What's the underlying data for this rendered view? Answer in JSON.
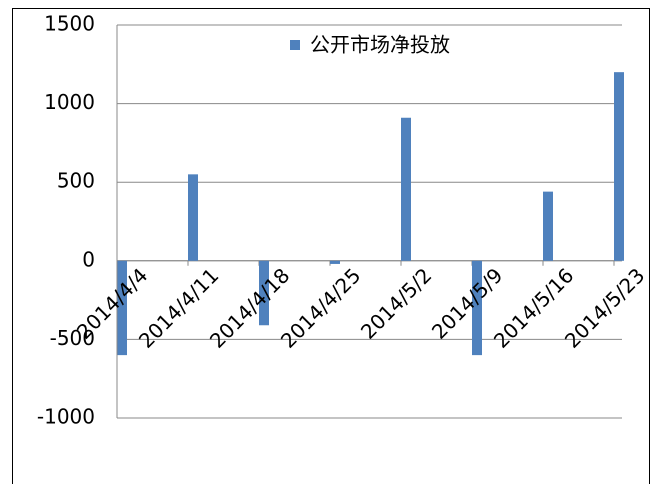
{
  "chart_data": {
    "type": "bar",
    "categories": [
      "2014/4/4",
      "2014/4/11",
      "2014/4/18",
      "2014/4/25",
      "2014/5/2",
      "2014/5/9",
      "2014/5/16",
      "2014/5/23"
    ],
    "series": [
      {
        "name": "公开市场净投放",
        "color": "#4f81bd",
        "values": [
          -600,
          550,
          -410,
          -20,
          910,
          -600,
          440,
          1200
        ]
      }
    ],
    "ylim": [
      -1000,
      1500
    ],
    "yticks": [
      -1000,
      -500,
      0,
      500,
      1000,
      1500
    ],
    "grid": true
  }
}
